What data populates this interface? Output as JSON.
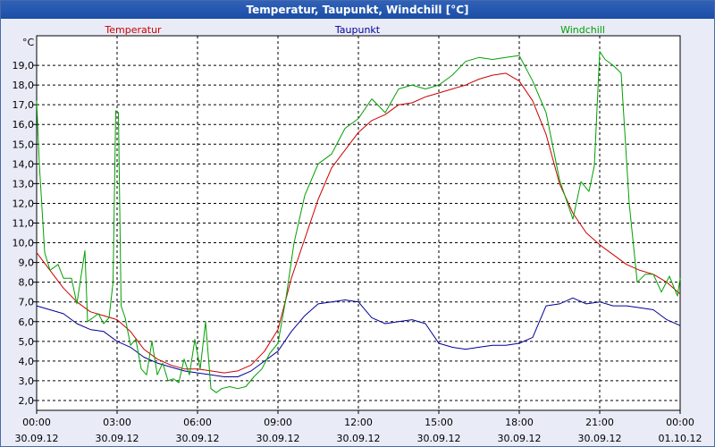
{
  "window": {
    "title": "Temperatur, Taupunkt, Windchill [°C]"
  },
  "chart_data": {
    "type": "line",
    "title": "Temperatur, Taupunkt, Windchill [°C]",
    "unit_label": "°C",
    "ylim": [
      1.5,
      20.5
    ],
    "y_ticks": [
      "2,0",
      "3,0",
      "4,0",
      "5,0",
      "6,0",
      "7,0",
      "8,0",
      "9,0",
      "10,0",
      "11,0",
      "12,0",
      "13,0",
      "14,0",
      "15,0",
      "16,0",
      "17,0",
      "18,0",
      "19,0"
    ],
    "y_tick_values": [
      2,
      3,
      4,
      5,
      6,
      7,
      8,
      9,
      10,
      11,
      12,
      13,
      14,
      15,
      16,
      17,
      18,
      19
    ],
    "xlim": [
      0,
      24
    ],
    "x_ticks": [
      {
        "h": 0,
        "time": "00:00",
        "date": "30.09.12"
      },
      {
        "h": 3,
        "time": "03:00",
        "date": "30.09.12"
      },
      {
        "h": 6,
        "time": "06:00",
        "date": "30.09.12"
      },
      {
        "h": 9,
        "time": "09:00",
        "date": "30.09.12"
      },
      {
        "h": 12,
        "time": "12:00",
        "date": "30.09.12"
      },
      {
        "h": 15,
        "time": "15:00",
        "date": "30.09.12"
      },
      {
        "h": 18,
        "time": "18:00",
        "date": "30.09.12"
      },
      {
        "h": 21,
        "time": "21:00",
        "date": "30.09.12"
      },
      {
        "h": 24,
        "time": "00:00",
        "date": "01.10.12"
      }
    ],
    "series": [
      {
        "name": "Temperatur",
        "color": "#cc0000",
        "x": [
          0,
          0.5,
          1,
          1.5,
          2,
          2.5,
          3,
          3.5,
          4,
          4.5,
          5,
          5.5,
          6,
          6.5,
          7,
          7.5,
          8,
          8.5,
          9,
          9.5,
          10,
          10.5,
          11,
          11.5,
          12,
          12.5,
          13,
          13.5,
          14,
          14.5,
          15,
          15.5,
          16,
          16.5,
          17,
          17.5,
          18,
          18.5,
          19,
          19.5,
          20,
          20.5,
          21,
          21.5,
          22,
          22.5,
          23,
          23.5,
          24
        ],
        "values": [
          9.5,
          8.6,
          7.7,
          7.0,
          6.5,
          6.3,
          6.1,
          5.5,
          4.6,
          4.1,
          3.8,
          3.6,
          3.6,
          3.5,
          3.4,
          3.5,
          3.8,
          4.5,
          5.6,
          8.2,
          10.2,
          12.2,
          13.8,
          14.7,
          15.6,
          16.2,
          16.5,
          17.0,
          17.1,
          17.4,
          17.6,
          17.8,
          18.0,
          18.3,
          18.5,
          18.6,
          18.2,
          17.2,
          15.5,
          13.0,
          11.5,
          10.5,
          9.9,
          9.4,
          8.9,
          8.6,
          8.4,
          8.0,
          7.4
        ]
      },
      {
        "name": "Taupunkt",
        "color": "#000099",
        "x": [
          0,
          0.5,
          1,
          1.5,
          2,
          2.5,
          3,
          3.5,
          4,
          4.5,
          5,
          5.5,
          6,
          6.5,
          7,
          7.5,
          8,
          8.5,
          9,
          9.5,
          10,
          10.5,
          11,
          11.5,
          12,
          12.5,
          13,
          13.5,
          14,
          14.5,
          15,
          15.5,
          16,
          16.5,
          17,
          17.5,
          18,
          18.5,
          19,
          19.5,
          20,
          20.5,
          21,
          21.5,
          22,
          22.5,
          23,
          23.5,
          24
        ],
        "values": [
          6.8,
          6.6,
          6.4,
          5.9,
          5.6,
          5.5,
          5.0,
          4.7,
          4.2,
          3.9,
          3.7,
          3.5,
          3.4,
          3.3,
          3.2,
          3.2,
          3.5,
          4.0,
          4.5,
          5.5,
          6.3,
          6.9,
          7.0,
          7.1,
          7.0,
          6.2,
          5.9,
          6.0,
          6.1,
          5.9,
          4.9,
          4.7,
          4.6,
          4.7,
          4.8,
          4.8,
          4.9,
          5.2,
          6.8,
          6.9,
          7.2,
          6.9,
          7.0,
          6.8,
          6.8,
          6.7,
          6.6,
          6.1,
          5.8
        ]
      },
      {
        "name": "Windchill",
        "color": "#00a000",
        "x": [
          0,
          0.1,
          0.3,
          0.5,
          0.8,
          1,
          1.3,
          1.5,
          1.8,
          1.9,
          2.1,
          2.3,
          2.5,
          2.7,
          2.85,
          2.95,
          3.05,
          3.15,
          3.3,
          3.5,
          3.7,
          3.9,
          4.1,
          4.3,
          4.5,
          4.7,
          4.9,
          5.1,
          5.3,
          5.5,
          5.7,
          5.9,
          6.1,
          6.3,
          6.5,
          6.7,
          6.9,
          7.2,
          7.5,
          7.8,
          8.1,
          8.4,
          8.7,
          9,
          9.3,
          9.6,
          10,
          10.5,
          11,
          11.5,
          12,
          12.5,
          13,
          13.5,
          14,
          14.5,
          15,
          15.5,
          16,
          16.5,
          17,
          17.5,
          18,
          18.5,
          19,
          19.5,
          20,
          20.3,
          20.6,
          20.8,
          21,
          21.2,
          21.5,
          21.8,
          22.1,
          22.4,
          22.7,
          23,
          23.3,
          23.6,
          23.9,
          24
        ],
        "values": [
          17.2,
          14.0,
          9.5,
          8.6,
          8.9,
          8.2,
          8.2,
          6.9,
          9.6,
          6.0,
          6.2,
          6.4,
          5.9,
          6.2,
          8.0,
          16.7,
          16.6,
          6.8,
          6.2,
          4.8,
          5.1,
          3.6,
          3.3,
          5.0,
          3.3,
          3.9,
          3.0,
          3.1,
          2.9,
          4.1,
          3.3,
          5.1,
          3.6,
          6.0,
          2.6,
          2.4,
          2.6,
          2.7,
          2.6,
          2.7,
          3.2,
          3.6,
          4.4,
          4.9,
          7.2,
          10.0,
          12.4,
          14.0,
          14.5,
          15.8,
          16.3,
          17.3,
          16.6,
          17.8,
          18.0,
          17.8,
          18.0,
          18.5,
          19.2,
          19.4,
          19.3,
          19.4,
          19.5,
          18.2,
          16.6,
          13.2,
          11.2,
          13.1,
          12.6,
          13.9,
          19.7,
          19.3,
          19.0,
          18.6,
          12.0,
          8.0,
          8.4,
          8.4,
          7.5,
          8.3,
          7.3,
          8.2
        ]
      }
    ]
  }
}
